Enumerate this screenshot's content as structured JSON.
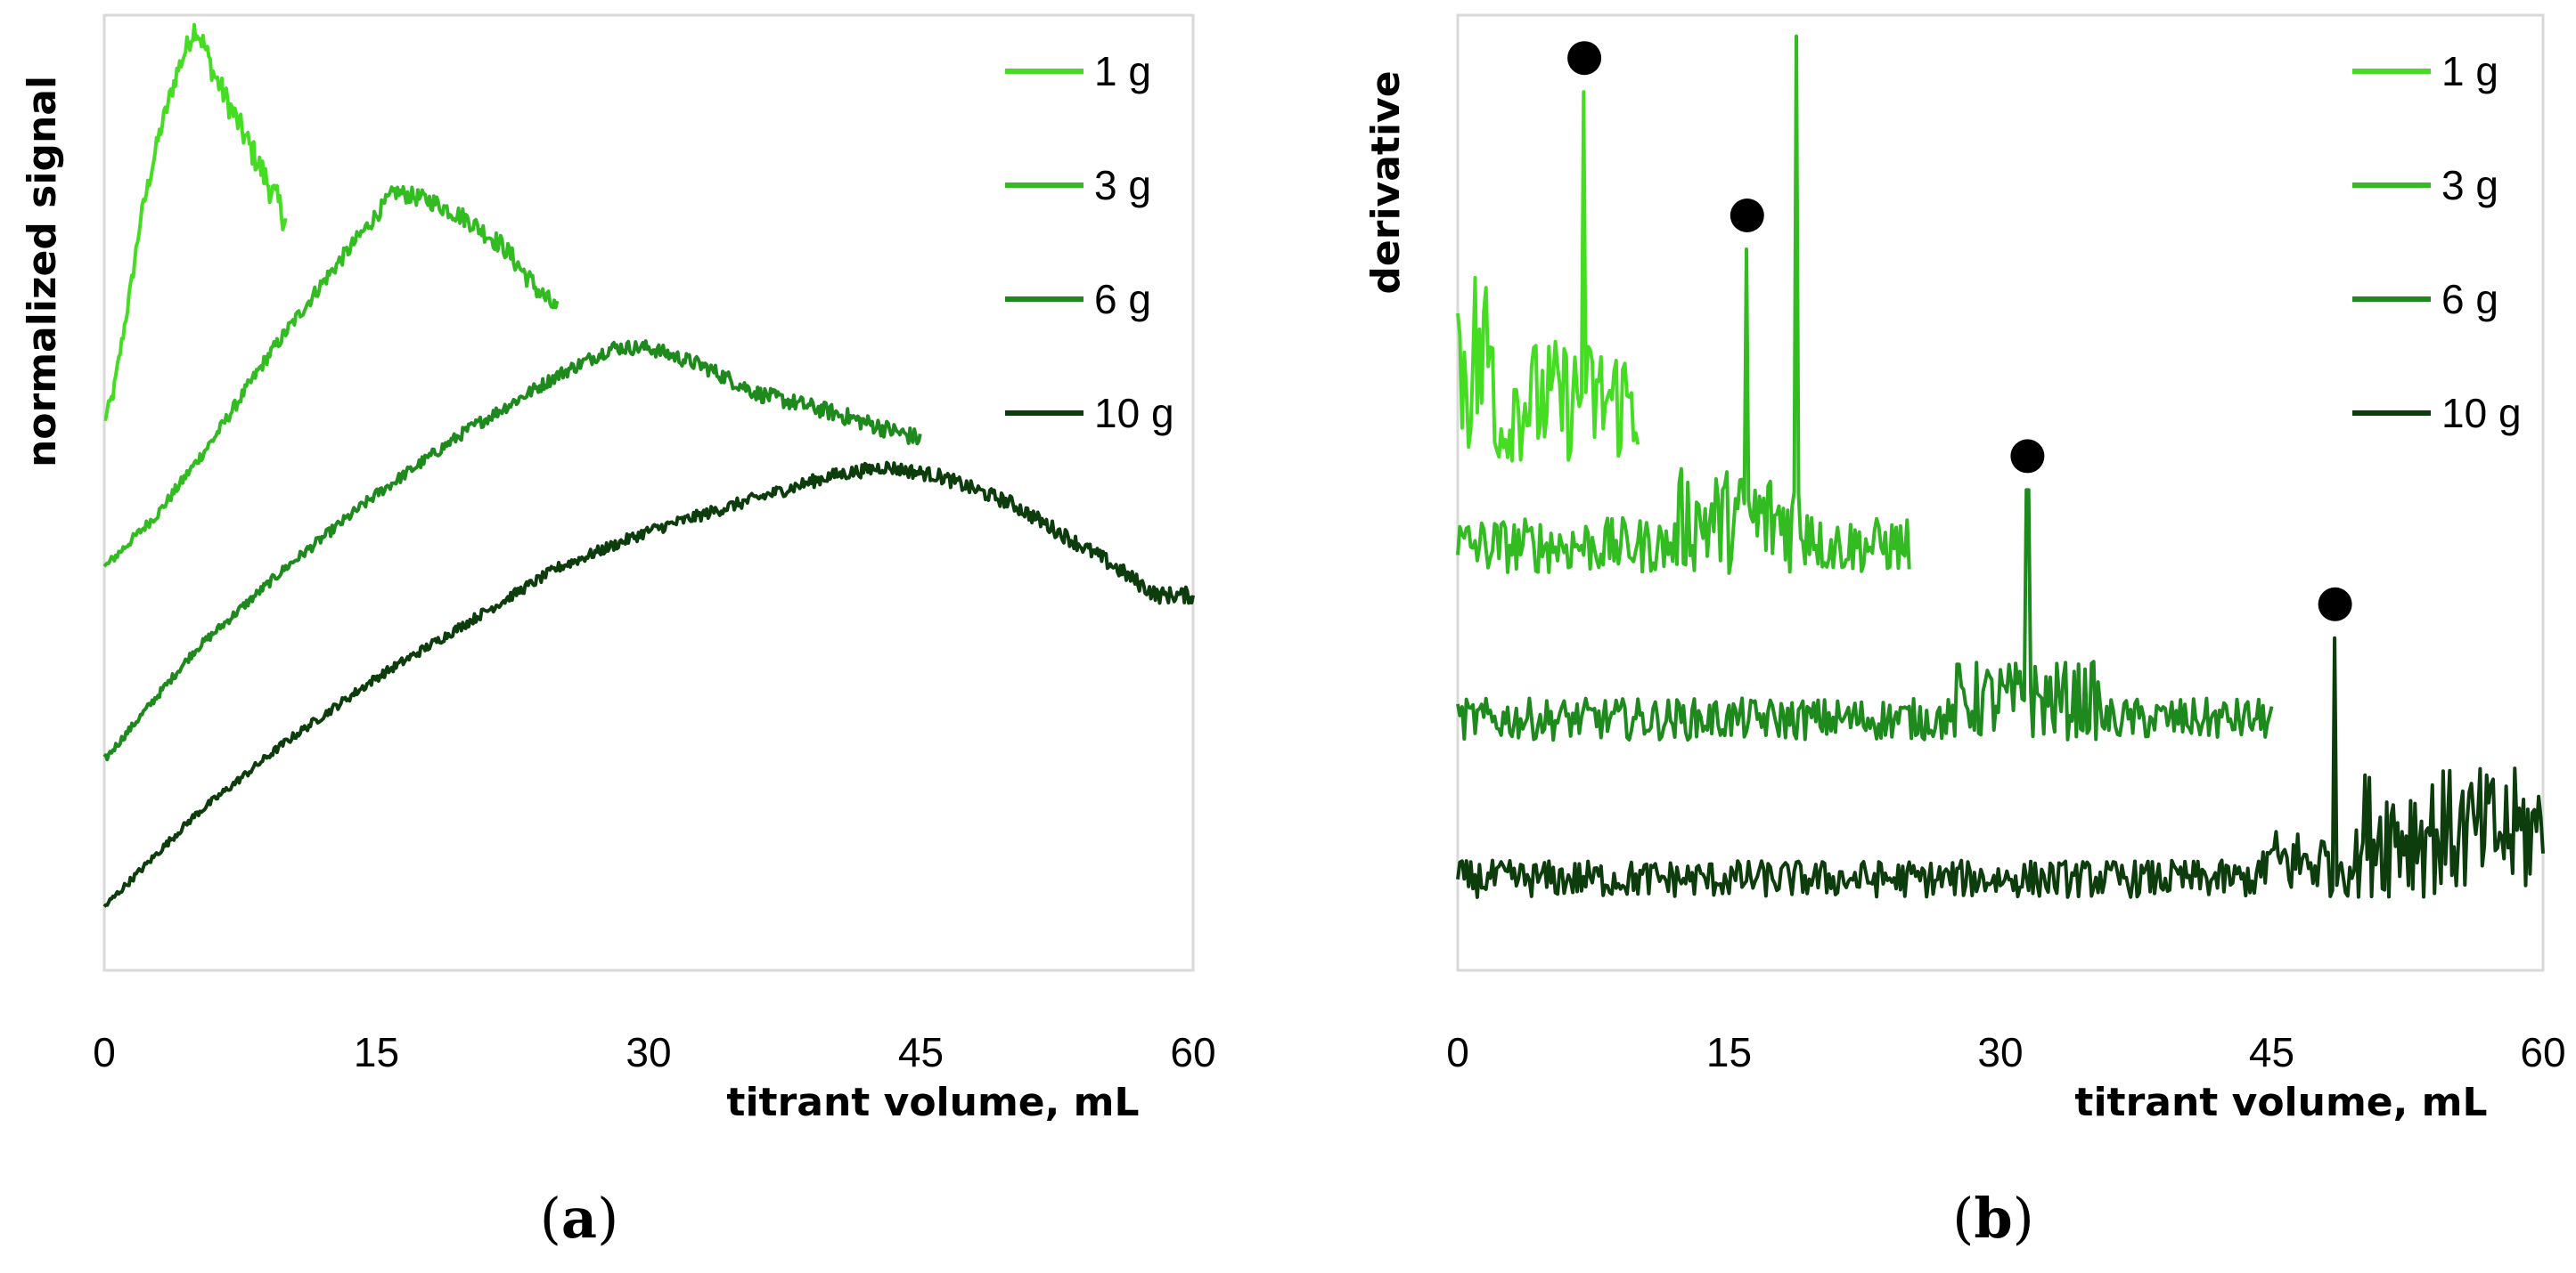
{
  "chart_data": [
    {
      "type": "line",
      "panel": "a",
      "panel_label": "a",
      "ylabel": "normalized signal",
      "xlabel": "titrant volume, mL",
      "xlim": [
        0,
        60
      ],
      "xticks": [
        "0",
        "15",
        "30",
        "45",
        "60"
      ],
      "series": [
        {
          "name": "1 g",
          "color": "#44dd22",
          "x": [
            0,
            0.5,
            1,
            1.5,
            2,
            3,
            4,
            5,
            5.5,
            6,
            7,
            8,
            9,
            10
          ],
          "y": [
            0.57,
            0.6,
            0.66,
            0.72,
            0.79,
            0.88,
            0.95,
            1.0,
            0.98,
            0.95,
            0.91,
            0.87,
            0.83,
            0.79
          ]
        },
        {
          "name": "3 g",
          "color": "#33bb22",
          "x": [
            0,
            3,
            6,
            9,
            12,
            14,
            16,
            18,
            20,
            22,
            24,
            25
          ],
          "y": [
            0.41,
            0.47,
            0.55,
            0.64,
            0.72,
            0.77,
            0.82,
            0.81,
            0.79,
            0.76,
            0.71,
            0.69
          ]
        },
        {
          "name": "6 g",
          "color": "#1e8a1e",
          "x": [
            0,
            5,
            10,
            15,
            20,
            25,
            28,
            30,
            33,
            36,
            40,
            45
          ],
          "y": [
            0.2,
            0.32,
            0.41,
            0.49,
            0.56,
            0.62,
            0.65,
            0.65,
            0.63,
            0.6,
            0.58,
            0.55
          ]
        },
        {
          "name": "10 g",
          "color": "#0d3d0d",
          "x": [
            0,
            5,
            10,
            15,
            20,
            25,
            30,
            35,
            40,
            43,
            46,
            50,
            55,
            58,
            60
          ],
          "y": [
            0.04,
            0.14,
            0.22,
            0.29,
            0.35,
            0.41,
            0.45,
            0.48,
            0.51,
            0.52,
            0.51,
            0.48,
            0.42,
            0.38,
            0.38
          ]
        }
      ]
    },
    {
      "type": "line",
      "panel": "b",
      "panel_label": "b",
      "ylabel": "derivative",
      "xlabel": "titrant volume, mL",
      "xlim": [
        0,
        60
      ],
      "xticks": [
        "0",
        "15",
        "30",
        "45",
        "60"
      ],
      "series": [
        {
          "name": "1 g",
          "color": "#44dd22",
          "x_range": [
            0,
            10
          ],
          "baseline": 0.52,
          "peak_x": 7
        },
        {
          "name": "3 g",
          "color": "#33bb22",
          "x_range": [
            0,
            25
          ],
          "baseline": 0.4,
          "peak_x": 16
        },
        {
          "name": "6 g",
          "color": "#1e8a1e",
          "x_range": [
            0,
            45
          ],
          "baseline": 0.22,
          "peak_x": 31.5
        },
        {
          "name": "10 g",
          "color": "#0d3d0d",
          "x_range": [
            0,
            60
          ],
          "baseline": 0.05,
          "peak_x": 48.5
        }
      ],
      "endpoint_markers": [
        {
          "series": "1 g",
          "x": 7
        },
        {
          "series": "3 g",
          "x": 16
        },
        {
          "series": "6 g",
          "x": 31.5
        },
        {
          "series": "10 g",
          "x": 48.5
        }
      ]
    }
  ]
}
